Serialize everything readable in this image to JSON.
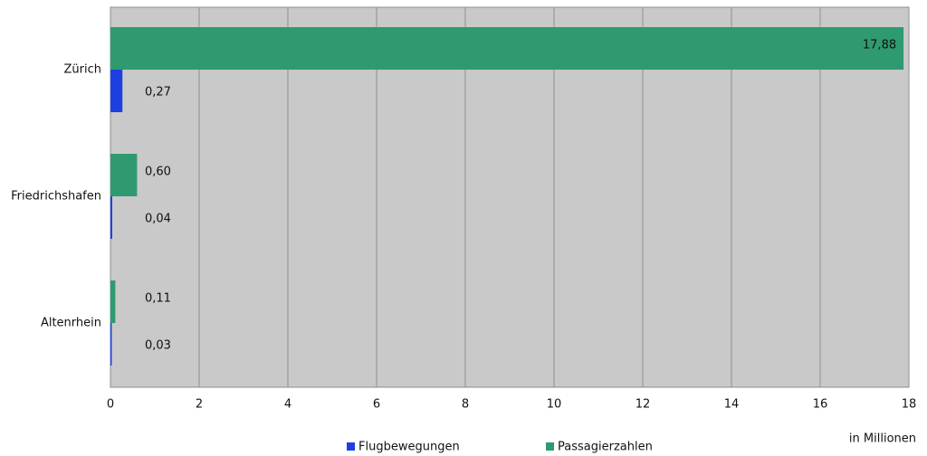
{
  "chart_data": {
    "type": "bar",
    "orientation": "horizontal",
    "categories": [
      "Zürich",
      "Friedrichshafen",
      "Altenrhein"
    ],
    "series": [
      {
        "name": "Flugbewegungen",
        "color": "#1e3fe0",
        "values": [
          0.27,
          0.04,
          0.03
        ],
        "value_labels": [
          "0,27",
          "0,04",
          "0,03"
        ]
      },
      {
        "name": "Passagierzahlen",
        "color": "#2f9a70",
        "values": [
          17.88,
          0.6,
          0.11
        ],
        "value_labels": [
          "17,88",
          "0,60",
          "0,11"
        ]
      }
    ],
    "xlim": [
      0,
      18
    ],
    "xticks": [
      0,
      2,
      4,
      6,
      8,
      10,
      12,
      14,
      16,
      18
    ],
    "xlabel": "in Millionen",
    "grid": true,
    "legend": "bottom"
  }
}
